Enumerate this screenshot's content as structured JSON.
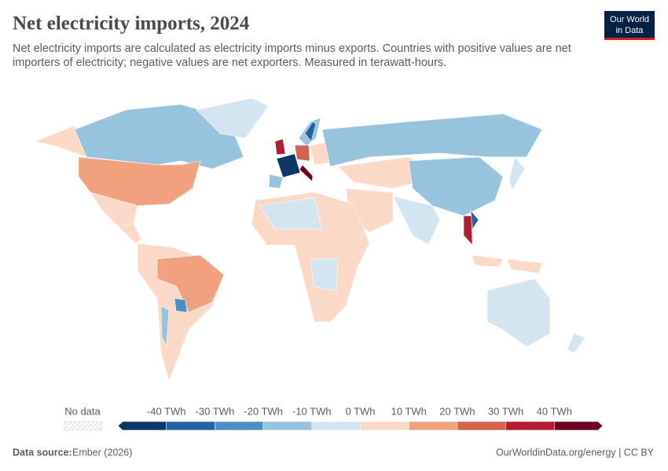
{
  "header": {
    "title": "Net electricity imports, 2024",
    "subtitle_lines": [
      "Net electricity imports are calculated as electricity imports minus exports. Countries with positive values are net",
      "importers of electricity; negative values are net exporters. Measured in terawatt-hours."
    ],
    "logo": [
      "Our World",
      "in Data"
    ]
  },
  "legend": {
    "no_data": "No data",
    "labels": [
      "-40 TWh",
      "-30 TWh",
      "-20 TWh",
      "-10 TWh",
      "0 TWh",
      "10 TWh",
      "20 TWh",
      "30 TWh",
      "40 TWh"
    ],
    "colors": [
      "#0c3768",
      "#2563a4",
      "#4a8ec4",
      "#96c4de",
      "#d3e5f0",
      "#fbd9c6",
      "#f1a17d",
      "#d4604e",
      "#b31b2e",
      "#6a0020"
    ]
  },
  "footer": {
    "source_label": "Data source:",
    "source": "Ember (2026)",
    "url": "OurWorldinData.org/energy | CC BY"
  }
}
